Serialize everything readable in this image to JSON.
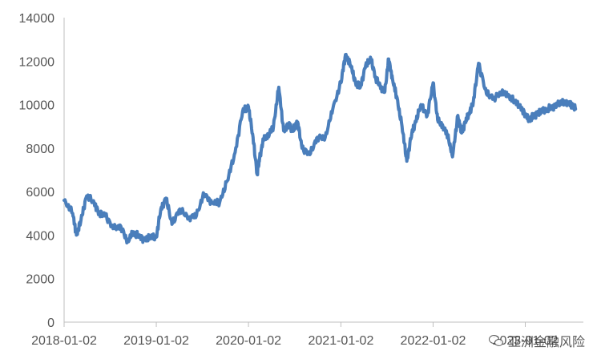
{
  "chart_data": {
    "type": "line",
    "title": "",
    "xlabel": "",
    "ylabel": "",
    "ylim": [
      0,
      14000
    ],
    "yticks": [
      "0",
      "2000",
      "4000",
      "6000",
      "8000",
      "10000",
      "12000",
      "14000"
    ],
    "xticks": [
      "2018-01-02",
      "2019-01-02",
      "2020-01-02",
      "2021-01-02",
      "2022-01-02",
      "2023-01-02"
    ],
    "grid": false,
    "legend": "none",
    "series": [
      {
        "color": "#4a7ebb",
        "x": [
          "2018-01-02",
          "2018-02-05",
          "2018-02-20",
          "2018-03-10",
          "2018-04-01",
          "2018-05-01",
          "2018-05-20",
          "2018-06-15",
          "2018-07-15",
          "2018-08-15",
          "2018-09-10",
          "2018-10-01",
          "2018-10-20",
          "2018-11-15",
          "2018-12-10",
          "2019-01-02",
          "2019-01-20",
          "2019-02-10",
          "2019-03-05",
          "2019-04-05",
          "2019-05-10",
          "2019-06-10",
          "2019-07-10",
          "2019-08-10",
          "2019-09-10",
          "2019-10-10",
          "2019-11-10",
          "2019-12-10",
          "2020-01-02",
          "2020-01-20",
          "2020-02-05",
          "2020-02-15",
          "2020-03-01",
          "2020-03-20",
          "2020-04-10",
          "2020-05-01",
          "2020-05-20",
          "2020-06-10",
          "2020-06-25",
          "2020-07-05",
          "2020-07-15",
          "2020-08-01",
          "2020-09-01",
          "2020-10-01",
          "2020-11-01",
          "2020-12-01",
          "2021-01-02",
          "2021-01-20",
          "2021-02-10",
          "2021-03-01",
          "2021-03-20",
          "2021-04-10",
          "2021-05-01",
          "2021-05-20",
          "2021-06-10",
          "2021-06-25",
          "2021-07-10",
          "2021-07-25",
          "2021-08-10",
          "2021-09-01",
          "2021-09-20",
          "2021-10-10",
          "2021-10-25",
          "2021-11-15",
          "2021-12-10",
          "2022-01-02",
          "2022-01-20",
          "2022-02-10",
          "2022-03-01",
          "2022-03-20",
          "2022-04-10",
          "2022-04-25",
          "2022-05-10",
          "2022-05-25",
          "2022-06-10",
          "2022-07-01",
          "2022-08-01",
          "2022-09-01",
          "2022-10-01",
          "2022-10-25",
          "2022-11-15",
          "2022-12-10",
          "2023-01-02",
          "2023-01-20",
          "2023-02-05",
          "2023-02-20",
          "2023-03-10",
          "2023-04-01",
          "2023-04-20",
          "2023-05-10",
          "2023-06-01",
          "2023-06-20",
          "2023-07-05",
          "2023-07-20"
        ],
        "y": [
          5600,
          5000,
          4000,
          4700,
          5800,
          5500,
          5000,
          4900,
          4300,
          4400,
          3700,
          4100,
          4000,
          3800,
          3900,
          3900,
          5200,
          5700,
          4500,
          5200,
          4800,
          4900,
          5900,
          5500,
          5500,
          6500,
          7800,
          9700,
          9900,
          8500,
          6800,
          7500,
          8400,
          8600,
          9000,
          10800,
          8800,
          9100,
          8800,
          9000,
          9200,
          8000,
          7700,
          8500,
          8500,
          9800,
          11000,
          12300,
          11800,
          11000,
          10800,
          11800,
          12100,
          11200,
          10800,
          10600,
          12100,
          11200,
          10400,
          9000,
          7400,
          8700,
          9200,
          10000,
          9500,
          11000,
          9300,
          9000,
          8600,
          7600,
          9500,
          8700,
          9200,
          9600,
          10100,
          11900,
          10500,
          10300,
          10600,
          10400,
          10200,
          10000,
          9500,
          9300,
          9500,
          9600,
          9700,
          9800,
          9900,
          10000,
          10100,
          10100,
          10000,
          9800
        ]
      }
    ]
  },
  "watermark": {
    "text": "亚洲金融风险"
  }
}
